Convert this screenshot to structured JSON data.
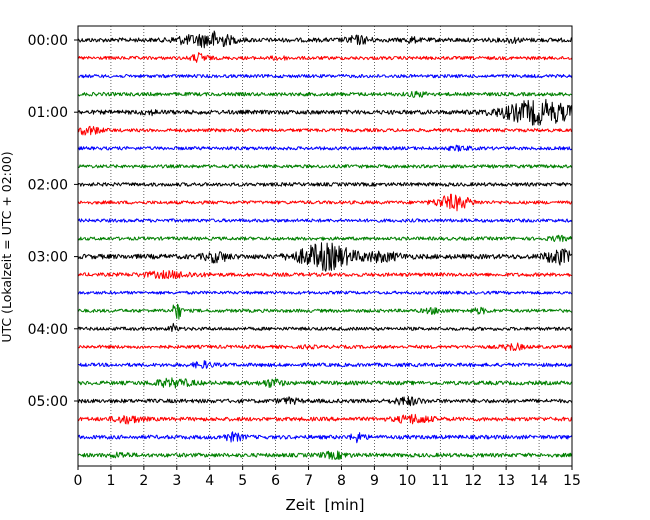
{
  "chart_data": {
    "type": "line",
    "title": "",
    "xlabel": "Zeit  [min]",
    "ylabel": "UTC (Lokalzeit = UTC + 02:00)",
    "xlim": [
      0,
      15
    ],
    "x_ticks": [
      "0",
      "1",
      "2",
      "3",
      "4",
      "5",
      "6",
      "7",
      "8",
      "9",
      "10",
      "11",
      "12",
      "13",
      "14",
      "15"
    ],
    "y_tick_labels": [
      "00:00",
      "01:00",
      "02:00",
      "03:00",
      "04:00",
      "05:00"
    ],
    "y_tick_traces": [
      0,
      4,
      8,
      12,
      16,
      20
    ],
    "grid": "vertical dotted at each minute",
    "legend": "none",
    "trace_colors": [
      "#000000",
      "#ff0000",
      "#0000ff",
      "#008000"
    ],
    "trace_interval_min": 15,
    "traces": [
      {
        "time": "00:00",
        "color": "#000000",
        "noise": 0.28,
        "events": [
          {
            "t": 4.1,
            "amp": 1.0,
            "w": 0.55
          },
          {
            "t": 3.2,
            "amp": 0.35,
            "w": 0.4
          },
          {
            "t": 8.5,
            "amp": 0.45,
            "w": 0.35
          },
          {
            "t": 10.1,
            "amp": 0.3,
            "w": 0.2
          },
          {
            "t": 13.2,
            "amp": 0.25,
            "w": 0.2
          }
        ]
      },
      {
        "time": "00:15",
        "color": "#ff0000",
        "noise": 0.22,
        "events": [
          {
            "t": 3.7,
            "amp": 0.55,
            "w": 0.25
          },
          {
            "t": 6.1,
            "amp": 0.25,
            "w": 0.2
          }
        ]
      },
      {
        "time": "00:30",
        "color": "#0000ff",
        "noise": 0.22,
        "events": []
      },
      {
        "time": "00:45",
        "color": "#008000",
        "noise": 0.24,
        "events": [
          {
            "t": 10.3,
            "amp": 0.25,
            "w": 0.3
          }
        ]
      },
      {
        "time": "01:00",
        "color": "#000000",
        "noise": 0.28,
        "events": [
          {
            "t": 14.0,
            "amp": 1.5,
            "w": 1.1
          },
          {
            "t": 2.2,
            "amp": 0.2,
            "w": 0.3
          }
        ]
      },
      {
        "time": "01:15",
        "color": "#ff0000",
        "noise": 0.22,
        "events": [
          {
            "t": 0.3,
            "amp": 0.5,
            "w": 0.4
          }
        ]
      },
      {
        "time": "01:30",
        "color": "#0000ff",
        "noise": 0.22,
        "events": [
          {
            "t": 11.6,
            "amp": 0.25,
            "w": 0.3
          }
        ]
      },
      {
        "time": "01:45",
        "color": "#008000",
        "noise": 0.22,
        "events": []
      },
      {
        "time": "02:00",
        "color": "#000000",
        "noise": 0.24,
        "events": []
      },
      {
        "time": "02:15",
        "color": "#ff0000",
        "noise": 0.22,
        "events": [
          {
            "t": 11.4,
            "amp": 0.95,
            "w": 0.5
          }
        ]
      },
      {
        "time": "02:30",
        "color": "#0000ff",
        "noise": 0.22,
        "events": []
      },
      {
        "time": "02:45",
        "color": "#008000",
        "noise": 0.22,
        "events": [
          {
            "t": 14.6,
            "amp": 0.25,
            "w": 0.3
          }
        ]
      },
      {
        "time": "03:00",
        "color": "#000000",
        "noise": 0.32,
        "events": [
          {
            "t": 7.5,
            "amp": 1.65,
            "w": 0.8
          },
          {
            "t": 4.2,
            "amp": 0.6,
            "w": 0.35
          },
          {
            "t": 9.2,
            "amp": 0.5,
            "w": 0.6
          },
          {
            "t": 14.6,
            "amp": 0.9,
            "w": 0.4
          }
        ]
      },
      {
        "time": "03:15",
        "color": "#ff0000",
        "noise": 0.24,
        "events": [
          {
            "t": 2.8,
            "amp": 0.35,
            "w": 0.8
          }
        ]
      },
      {
        "time": "03:30",
        "color": "#0000ff",
        "noise": 0.2,
        "events": []
      },
      {
        "time": "03:45",
        "color": "#008000",
        "noise": 0.22,
        "events": [
          {
            "t": 3.0,
            "amp": 1.35,
            "w": 0.12
          },
          {
            "t": 10.8,
            "amp": 0.3,
            "w": 0.3
          },
          {
            "t": 12.2,
            "amp": 0.3,
            "w": 0.25
          }
        ]
      },
      {
        "time": "04:00",
        "color": "#000000",
        "noise": 0.22,
        "events": [
          {
            "t": 2.9,
            "amp": 0.55,
            "w": 0.12
          }
        ]
      },
      {
        "time": "04:15",
        "color": "#ff0000",
        "noise": 0.22,
        "events": [
          {
            "t": 13.2,
            "amp": 0.4,
            "w": 0.3
          },
          {
            "t": 7.0,
            "amp": 0.2,
            "w": 0.15
          }
        ]
      },
      {
        "time": "04:30",
        "color": "#0000ff",
        "noise": 0.24,
        "events": [
          {
            "t": 3.8,
            "amp": 0.35,
            "w": 0.3
          }
        ]
      },
      {
        "time": "04:45",
        "color": "#008000",
        "noise": 0.26,
        "events": [
          {
            "t": 2.9,
            "amp": 0.45,
            "w": 0.6
          },
          {
            "t": 5.9,
            "amp": 0.45,
            "w": 0.3
          }
        ]
      },
      {
        "time": "05:00",
        "color": "#000000",
        "noise": 0.26,
        "events": [
          {
            "t": 10.0,
            "amp": 0.45,
            "w": 0.4
          },
          {
            "t": 6.4,
            "amp": 0.3,
            "w": 0.3
          }
        ]
      },
      {
        "time": "05:15",
        "color": "#ff0000",
        "noise": 0.26,
        "events": [
          {
            "t": 1.5,
            "amp": 0.45,
            "w": 0.4
          },
          {
            "t": 10.2,
            "amp": 0.5,
            "w": 0.5
          }
        ]
      },
      {
        "time": "05:30",
        "color": "#0000ff",
        "noise": 0.26,
        "events": [
          {
            "t": 4.7,
            "amp": 0.45,
            "w": 0.3
          },
          {
            "t": 8.5,
            "amp": 0.55,
            "w": 0.2
          }
        ]
      },
      {
        "time": "05:45",
        "color": "#008000",
        "noise": 0.26,
        "events": [
          {
            "t": 7.8,
            "amp": 0.35,
            "w": 0.4
          },
          {
            "t": 1.3,
            "amp": 0.25,
            "w": 0.3
          }
        ]
      }
    ]
  }
}
